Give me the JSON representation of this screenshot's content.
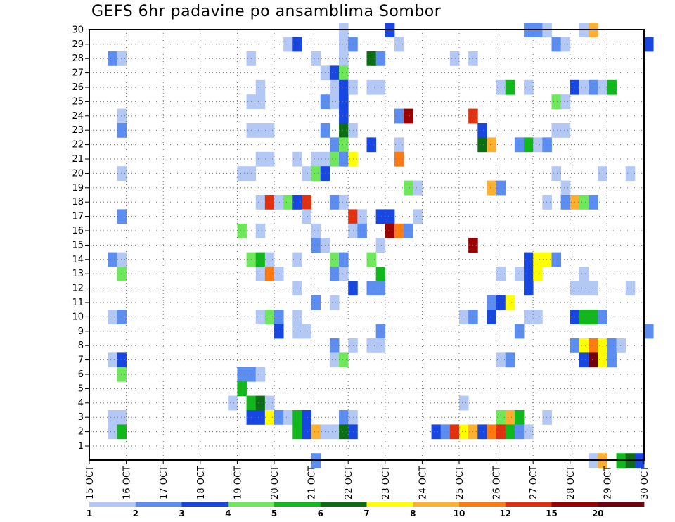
{
  "title": "GEFS 6hr padavine po ansamblima Sombor",
  "chart_data": {
    "type": "heatmap",
    "title": "GEFS 6hr padavine po ansamblima Sombor",
    "y_ticks": [
      "1",
      "2",
      "3",
      "4",
      "5",
      "6",
      "7",
      "8",
      "9",
      "10",
      "11",
      "12",
      "13",
      "14",
      "15",
      "16",
      "17",
      "18",
      "19",
      "20",
      "21",
      "22",
      "23",
      "24",
      "25",
      "26",
      "27",
      "28",
      "29",
      "30"
    ],
    "x_ticks": [
      "15 OCT",
      "16 OCT",
      "17 OCT",
      "18 OCT",
      "19 OCT",
      "20 OCT",
      "21 OCT",
      "22 OCT",
      "23 OCT",
      "24 OCT",
      "25 OCT",
      "26 OCT",
      "27 OCT",
      "28 OCT",
      "29 OCT",
      "30 OCT"
    ],
    "x_range": [
      "2023-10-15 00:00",
      "2023-10-30 00:00"
    ],
    "time_step_hours": 6,
    "grid": true,
    "colorbar": {
      "labels": [
        "1",
        "2",
        "3",
        "4",
        "5",
        "6",
        "7",
        "8",
        "10",
        "12",
        "15",
        "20"
      ],
      "colors": [
        "#b3c8f5",
        "#5b8ef0",
        "#1846e0",
        "#6ee85a",
        "#10b81c",
        "#0b6e14",
        "#ffff00",
        "#ffb030",
        "#ff7a10",
        "#e03010",
        "#9c0000",
        "#700010"
      ]
    },
    "cells": [
      [
        "30",
        "21 OCT 18",
        1
      ],
      [
        "30",
        "23 OCT 00",
        3
      ],
      [
        "30",
        "26 OCT 18",
        2
      ],
      [
        "30",
        "27 OCT 00",
        2
      ],
      [
        "30",
        "27 OCT 06",
        1
      ],
      [
        "30",
        "28 OCT 06",
        1
      ],
      [
        "30",
        "28 OCT 12",
        8
      ],
      [
        "29",
        "20 OCT 06",
        1
      ],
      [
        "29",
        "20 OCT 12",
        3
      ],
      [
        "29",
        "21 OCT 18",
        1
      ],
      [
        "29",
        "22 OCT 00",
        2
      ],
      [
        "29",
        "23 OCT 06",
        1
      ],
      [
        "29",
        "27 OCT 12",
        2
      ],
      [
        "29",
        "27 OCT 18",
        1
      ],
      [
        "29",
        "30 OCT 00",
        3
      ],
      [
        "28",
        "15 OCT 12",
        2
      ],
      [
        "28",
        "15 OCT 18",
        1
      ],
      [
        "28",
        "19 OCT 06",
        1
      ],
      [
        "28",
        "21 OCT 00",
        1
      ],
      [
        "28",
        "21 OCT 18",
        1
      ],
      [
        "28",
        "22 OCT 12",
        6
      ],
      [
        "28",
        "22 OCT 18",
        2
      ],
      [
        "28",
        "24 OCT 18",
        1
      ],
      [
        "28",
        "25 OCT 06",
        1
      ],
      [
        "27",
        "21 OCT 06",
        1
      ],
      [
        "27",
        "21 OCT 12",
        3
      ],
      [
        "27",
        "21 OCT 18",
        4
      ],
      [
        "26",
        "19 OCT 12",
        1
      ],
      [
        "26",
        "21 OCT 12",
        1
      ],
      [
        "26",
        "21 OCT 18",
        3
      ],
      [
        "26",
        "22 OCT 00",
        1
      ],
      [
        "26",
        "22 OCT 12",
        1
      ],
      [
        "26",
        "22 OCT 18",
        1
      ],
      [
        "26",
        "26 OCT 00",
        1
      ],
      [
        "26",
        "26 OCT 06",
        5
      ],
      [
        "26",
        "26 OCT 18",
        1
      ],
      [
        "26",
        "28 OCT 00",
        3
      ],
      [
        "26",
        "28 OCT 06",
        1
      ],
      [
        "26",
        "28 OCT 12",
        2
      ],
      [
        "26",
        "28 OCT 18",
        1
      ],
      [
        "26",
        "29 OCT 00",
        5
      ],
      [
        "25",
        "19 OCT 06",
        1
      ],
      [
        "25",
        "19 OCT 12",
        1
      ],
      [
        "25",
        "21 OCT 06",
        2
      ],
      [
        "25",
        "21 OCT 12",
        1
      ],
      [
        "25",
        "21 OCT 18",
        3
      ],
      [
        "25",
        "27 OCT 12",
        4
      ],
      [
        "25",
        "27 OCT 18",
        1
      ],
      [
        "24",
        "15 OCT 18",
        1
      ],
      [
        "24",
        "21 OCT 18",
        3
      ],
      [
        "24",
        "23 OCT 06",
        2
      ],
      [
        "24",
        "23 OCT 12",
        15
      ],
      [
        "24",
        "25 OCT 06",
        12
      ],
      [
        "23",
        "15 OCT 18",
        2
      ],
      [
        "23",
        "19 OCT 06",
        1
      ],
      [
        "23",
        "19 OCT 12",
        1
      ],
      [
        "23",
        "19 OCT 18",
        1
      ],
      [
        "23",
        "21 OCT 06",
        2
      ],
      [
        "23",
        "21 OCT 18",
        6
      ],
      [
        "23",
        "22 OCT 00",
        1
      ],
      [
        "23",
        "25 OCT 12",
        3
      ],
      [
        "23",
        "27 OCT 12",
        1
      ],
      [
        "23",
        "27 OCT 18",
        1
      ],
      [
        "22",
        "21 OCT 12",
        2
      ],
      [
        "22",
        "21 OCT 18",
        4
      ],
      [
        "22",
        "22 OCT 12",
        3
      ],
      [
        "22",
        "23 OCT 06",
        1
      ],
      [
        "22",
        "25 OCT 12",
        6
      ],
      [
        "22",
        "25 OCT 18",
        8
      ],
      [
        "22",
        "26 OCT 12",
        2
      ],
      [
        "22",
        "26 OCT 18",
        5
      ],
      [
        "22",
        "27 OCT 00",
        1
      ],
      [
        "22",
        "27 OCT 06",
        2
      ],
      [
        "21",
        "19 OCT 12",
        1
      ],
      [
        "21",
        "19 OCT 18",
        1
      ],
      [
        "21",
        "20 OCT 12",
        1
      ],
      [
        "21",
        "21 OCT 00",
        1
      ],
      [
        "21",
        "21 OCT 06",
        1
      ],
      [
        "21",
        "21 OCT 12",
        4
      ],
      [
        "21",
        "21 OCT 18",
        2
      ],
      [
        "21",
        "22 OCT 00",
        7
      ],
      [
        "21",
        "23 OCT 06",
        10
      ],
      [
        "20",
        "15 OCT 18",
        1
      ],
      [
        "20",
        "19 OCT 00",
        1
      ],
      [
        "20",
        "19 OCT 06",
        1
      ],
      [
        "20",
        "20 OCT 18",
        1
      ],
      [
        "20",
        "21 OCT 00",
        4
      ],
      [
        "20",
        "21 OCT 06",
        3
      ],
      [
        "20",
        "27 OCT 12",
        1
      ],
      [
        "20",
        "28 OCT 18",
        1
      ],
      [
        "20",
        "29 OCT 12",
        1
      ],
      [
        "19",
        "23 OCT 12",
        4
      ],
      [
        "19",
        "23 OCT 18",
        1
      ],
      [
        "19",
        "25 OCT 18",
        8
      ],
      [
        "19",
        "26 OCT 00",
        2
      ],
      [
        "19",
        "27 OCT 18",
        1
      ],
      [
        "18",
        "19 OCT 12",
        1
      ],
      [
        "18",
        "19 OCT 18",
        12
      ],
      [
        "18",
        "20 OCT 00",
        1
      ],
      [
        "18",
        "20 OCT 06",
        4
      ],
      [
        "18",
        "20 OCT 12",
        3
      ],
      [
        "18",
        "20 OCT 18",
        12
      ],
      [
        "18",
        "21 OCT 12",
        2
      ],
      [
        "18",
        "21 OCT 18",
        1
      ],
      [
        "18",
        "27 OCT 06",
        1
      ],
      [
        "18",
        "27 OCT 18",
        2
      ],
      [
        "18",
        "28 OCT 00",
        8
      ],
      [
        "18",
        "28 OCT 06",
        4
      ],
      [
        "18",
        "28 OCT 12",
        2
      ],
      [
        "17",
        "15 OCT 18",
        2
      ],
      [
        "17",
        "20 OCT 18",
        1
      ],
      [
        "17",
        "22 OCT 00",
        12
      ],
      [
        "17",
        "22 OCT 06",
        1
      ],
      [
        "17",
        "22 OCT 18",
        3
      ],
      [
        "17",
        "23 OCT 00",
        3
      ],
      [
        "17",
        "23 OCT 18",
        1
      ],
      [
        "16",
        "19 OCT 00",
        4
      ],
      [
        "16",
        "19 OCT 12",
        1
      ],
      [
        "16",
        "21 OCT 00",
        1
      ],
      [
        "16",
        "22 OCT 00",
        1
      ],
      [
        "16",
        "22 OCT 06",
        2
      ],
      [
        "16",
        "23 OCT 00",
        15
      ],
      [
        "16",
        "23 OCT 06",
        10
      ],
      [
        "16",
        "23 OCT 12",
        2
      ],
      [
        "15",
        "21 OCT 00",
        2
      ],
      [
        "15",
        "21 OCT 06",
        1
      ],
      [
        "15",
        "22 OCT 18",
        1
      ],
      [
        "15",
        "25 OCT 06",
        15
      ],
      [
        "14",
        "15 OCT 12",
        2
      ],
      [
        "14",
        "15 OCT 18",
        1
      ],
      [
        "14",
        "19 OCT 06",
        4
      ],
      [
        "14",
        "19 OCT 12",
        5
      ],
      [
        "14",
        "19 OCT 18",
        1
      ],
      [
        "14",
        "20 OCT 12",
        1
      ],
      [
        "14",
        "21 OCT 12",
        4
      ],
      [
        "14",
        "21 OCT 18",
        2
      ],
      [
        "14",
        "22 OCT 12",
        4
      ],
      [
        "14",
        "26 OCT 18",
        3
      ],
      [
        "14",
        "27 OCT 00",
        7
      ],
      [
        "14",
        "27 OCT 06",
        7
      ],
      [
        "14",
        "27 OCT 12",
        2
      ],
      [
        "13",
        "15 OCT 18",
        4
      ],
      [
        "13",
        "19 OCT 12",
        1
      ],
      [
        "13",
        "19 OCT 18",
        10
      ],
      [
        "13",
        "20 OCT 00",
        1
      ],
      [
        "13",
        "21 OCT 12",
        2
      ],
      [
        "13",
        "21 OCT 18",
        1
      ],
      [
        "13",
        "22 OCT 18",
        5
      ],
      [
        "13",
        "26 OCT 00",
        1
      ],
      [
        "13",
        "26 OCT 12",
        1
      ],
      [
        "13",
        "26 OCT 18",
        3
      ],
      [
        "13",
        "27 OCT 00",
        7
      ],
      [
        "13",
        "28 OCT 06",
        1
      ],
      [
        "12",
        "20 OCT 12",
        1
      ],
      [
        "12",
        "22 OCT 00",
        3
      ],
      [
        "12",
        "22 OCT 12",
        2
      ],
      [
        "12",
        "22 OCT 18",
        2
      ],
      [
        "12",
        "26 OCT 18",
        3
      ],
      [
        "12",
        "28 OCT 00",
        1
      ],
      [
        "12",
        "28 OCT 06",
        1
      ],
      [
        "12",
        "28 OCT 12",
        1
      ],
      [
        "12",
        "29 OCT 12",
        1
      ],
      [
        "11",
        "21 OCT 00",
        2
      ],
      [
        "11",
        "21 OCT 12",
        1
      ],
      [
        "11",
        "25 OCT 18",
        2
      ],
      [
        "11",
        "26 OCT 00",
        3
      ],
      [
        "11",
        "26 OCT 06",
        7
      ],
      [
        "10",
        "15 OCT 12",
        1
      ],
      [
        "10",
        "15 OCT 18",
        2
      ],
      [
        "10",
        "19 OCT 12",
        1
      ],
      [
        "10",
        "19 OCT 18",
        4
      ],
      [
        "10",
        "20 OCT 00",
        2
      ],
      [
        "10",
        "20 OCT 12",
        1
      ],
      [
        "10",
        "25 OCT 00",
        1
      ],
      [
        "10",
        "25 OCT 06",
        2
      ],
      [
        "10",
        "25 OCT 18",
        3
      ],
      [
        "10",
        "26 OCT 18",
        1
      ],
      [
        "10",
        "27 OCT 00",
        1
      ],
      [
        "10",
        "28 OCT 00",
        3
      ],
      [
        "10",
        "28 OCT 06",
        5
      ],
      [
        "10",
        "28 OCT 12",
        5
      ],
      [
        "10",
        "28 OCT 18",
        2
      ],
      [
        "9",
        "20 OCT 00",
        3
      ],
      [
        "9",
        "20 OCT 12",
        1
      ],
      [
        "9",
        "20 OCT 18",
        1
      ],
      [
        "9",
        "22 OCT 18",
        2
      ],
      [
        "9",
        "26 OCT 12",
        2
      ],
      [
        "9",
        "30 OCT 00",
        2
      ],
      [
        "8",
        "21 OCT 12",
        2
      ],
      [
        "8",
        "22 OCT 00",
        1
      ],
      [
        "8",
        "22 OCT 12",
        1
      ],
      [
        "8",
        "22 OCT 18",
        1
      ],
      [
        "8",
        "28 OCT 00",
        2
      ],
      [
        "8",
        "28 OCT 06",
        7
      ],
      [
        "8",
        "28 OCT 12",
        10
      ],
      [
        "8",
        "28 OCT 18",
        7
      ],
      [
        "8",
        "29 OCT 00",
        2
      ],
      [
        "8",
        "29 OCT 06",
        1
      ],
      [
        "7",
        "15 OCT 12",
        1
      ],
      [
        "7",
        "15 OCT 18",
        3
      ],
      [
        "7",
        "21 OCT 12",
        1
      ],
      [
        "7",
        "21 OCT 18",
        4
      ],
      [
        "7",
        "26 OCT 00",
        1
      ],
      [
        "7",
        "26 OCT 06",
        2
      ],
      [
        "7",
        "28 OCT 06",
        3
      ],
      [
        "7",
        "28 OCT 12",
        20
      ],
      [
        "7",
        "28 OCT 18",
        7
      ],
      [
        "7",
        "29 OCT 00",
        2
      ],
      [
        "6",
        "15 OCT 18",
        4
      ],
      [
        "6",
        "19 OCT 00",
        2
      ],
      [
        "6",
        "19 OCT 06",
        2
      ],
      [
        "6",
        "19 OCT 12",
        1
      ],
      [
        "5",
        "19 OCT 00",
        5
      ],
      [
        "4",
        "18 OCT 18",
        1
      ],
      [
        "4",
        "19 OCT 06",
        5
      ],
      [
        "4",
        "19 OCT 12",
        6
      ],
      [
        "4",
        "19 OCT 18",
        1
      ],
      [
        "4",
        "25 OCT 00",
        1
      ],
      [
        "3",
        "15 OCT 12",
        1
      ],
      [
        "3",
        "15 OCT 18",
        1
      ],
      [
        "3",
        "19 OCT 06",
        3
      ],
      [
        "3",
        "19 OCT 12",
        3
      ],
      [
        "3",
        "19 OCT 18",
        7
      ],
      [
        "3",
        "20 OCT 00",
        2
      ],
      [
        "3",
        "20 OCT 06",
        1
      ],
      [
        "3",
        "20 OCT 12",
        5
      ],
      [
        "3",
        "20 OCT 18",
        3
      ],
      [
        "3",
        "21 OCT 18",
        2
      ],
      [
        "3",
        "22 OCT 00",
        1
      ],
      [
        "3",
        "26 OCT 00",
        4
      ],
      [
        "3",
        "26 OCT 06",
        8
      ],
      [
        "3",
        "26 OCT 12",
        5
      ],
      [
        "3",
        "27 OCT 06",
        1
      ],
      [
        "2",
        "15 OCT 12",
        1
      ],
      [
        "2",
        "15 OCT 18",
        5
      ],
      [
        "2",
        "20 OCT 12",
        5
      ],
      [
        "2",
        "20 OCT 18",
        3
      ],
      [
        "2",
        "21 OCT 00",
        8
      ],
      [
        "2",
        "21 OCT 06",
        1
      ],
      [
        "2",
        "21 OCT 12",
        1
      ],
      [
        "2",
        "21 OCT 18",
        6
      ],
      [
        "2",
        "22 OCT 00",
        3
      ],
      [
        "2",
        "24 OCT 06",
        3
      ],
      [
        "2",
        "24 OCT 12",
        2
      ],
      [
        "2",
        "24 OCT 18",
        12
      ],
      [
        "2",
        "25 OCT 00",
        7
      ],
      [
        "2",
        "25 OCT 06",
        8
      ],
      [
        "2",
        "25 OCT 12",
        3
      ],
      [
        "2",
        "25 OCT 18",
        10
      ],
      [
        "2",
        "26 OCT 00",
        12
      ],
      [
        "2",
        "26 OCT 06",
        5
      ],
      [
        "2",
        "26 OCT 12",
        2
      ],
      [
        "2",
        "26 OCT 18",
        1
      ],
      [
        "0",
        "21 OCT 00",
        2
      ],
      [
        "0",
        "28 OCT 12",
        1
      ],
      [
        "0",
        "28 OCT 18",
        8
      ],
      [
        "0",
        "29 OCT 06",
        5
      ],
      [
        "0",
        "29 OCT 12",
        6
      ],
      [
        "0",
        "29 OCT 18",
        3
      ]
    ]
  }
}
